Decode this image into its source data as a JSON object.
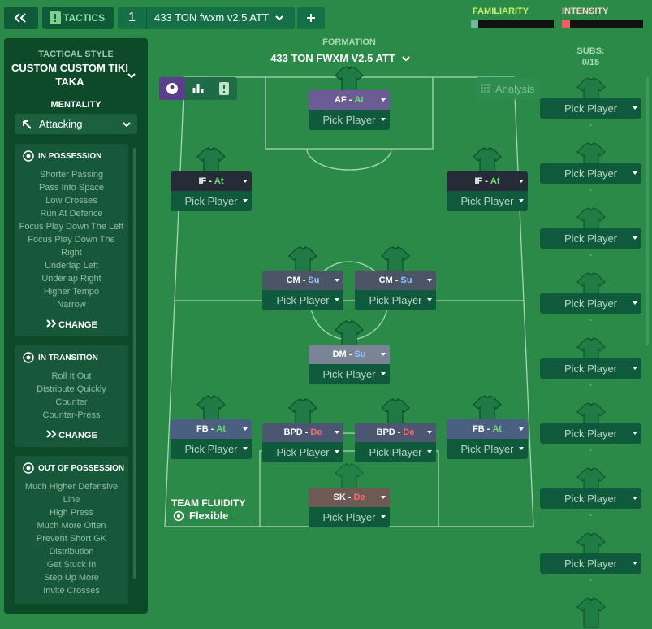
{
  "top_bar": {
    "section": "TACTICS",
    "slot": "1",
    "tactic_name": "433 TON fwxm v2.5 ATT",
    "familiarity_label": "FAMILIARITY",
    "intensity_label": "INTENSITY"
  },
  "left_panel": {
    "style_label": "TACTICAL STYLE",
    "style_name": "CUSTOM CUSTOM TIKI TAKA",
    "mentality_label": "MENTALITY",
    "mentality": "Attacking",
    "groups": [
      {
        "title": "IN POSSESSION",
        "items": [
          "Shorter Passing",
          "Pass Into Space",
          "Low Crosses",
          "Run At Defence",
          "Focus Play Down The Left",
          "Focus Play Down The Right",
          "Underlap Left",
          "Underlap Right",
          "Higher Tempo",
          "Narrow"
        ],
        "action": "CHANGE"
      },
      {
        "title": "IN TRANSITION",
        "items": [
          "Roll It Out",
          "Distribute Quickly",
          "Counter",
          "Counter-Press"
        ],
        "action": "CHANGE"
      },
      {
        "title": "OUT OF POSSESSION",
        "items": [
          "Much Higher Defensive Line",
          "High Press",
          "Much More Often",
          "Prevent Short GK Distribution",
          "Get Stuck In",
          "Step Up More",
          "Invite Crosses"
        ]
      }
    ]
  },
  "formation": {
    "label": "FORMATION",
    "name": "433 TON FWXM V2.5 ATT",
    "analysis": "Analysis",
    "fluidity_label": "TEAM FLUIDITY",
    "fluidity": "Flexible",
    "role_separator": "-",
    "positions": [
      {
        "role": "AF",
        "duty": "At",
        "duty_color": "#6de06d",
        "box_color": "#6b5c96",
        "player": "Pick Player"
      },
      {
        "role": "IF",
        "duty": "At",
        "duty_color": "#6de06d",
        "box_color": "#262b38",
        "player": "Pick Player"
      },
      {
        "role": "IF",
        "duty": "At",
        "duty_color": "#6de06d",
        "box_color": "#262b38",
        "player": "Pick Player"
      },
      {
        "role": "CM",
        "duty": "Su",
        "duty_color": "#8ec5ff",
        "box_color": "#4b5566",
        "player": "Pick Player"
      },
      {
        "role": "CM",
        "duty": "Su",
        "duty_color": "#8ec5ff",
        "box_color": "#4b5566",
        "player": "Pick Player"
      },
      {
        "role": "DM",
        "duty": "Su",
        "duty_color": "#8ec5ff",
        "box_color": "#7a8494",
        "player": "Pick Player"
      },
      {
        "role": "FB",
        "duty": "At",
        "duty_color": "#6de06d",
        "box_color": "#4b6080",
        "player": "Pick Player"
      },
      {
        "role": "BPD",
        "duty": "De",
        "duty_color": "#ff6a6a",
        "box_color": "#4b5670",
        "player": "Pick Player"
      },
      {
        "role": "BPD",
        "duty": "De",
        "duty_color": "#ff6a6a",
        "box_color": "#4b5670",
        "player": "Pick Player"
      },
      {
        "role": "FB",
        "duty": "At",
        "duty_color": "#6de06d",
        "box_color": "#4b6080",
        "player": "Pick Player"
      },
      {
        "role": "SK",
        "duty": "De",
        "duty_color": "#ff6a6a",
        "box_color": "#6e5a55",
        "player": "Pick Player"
      }
    ]
  },
  "subs": {
    "label": "SUBS:",
    "count": "0/15",
    "slots": [
      {
        "player": "Pick Player",
        "dash": "-"
      },
      {
        "player": "Pick Player",
        "dash": "-"
      },
      {
        "player": "Pick Player",
        "dash": "-"
      },
      {
        "player": "Pick Player",
        "dash": "-"
      },
      {
        "player": "Pick Player",
        "dash": "-"
      },
      {
        "player": "Pick Player",
        "dash": "-"
      },
      {
        "player": "Pick Player",
        "dash": "-"
      },
      {
        "player": "Pick Player",
        "dash": "-"
      }
    ]
  }
}
